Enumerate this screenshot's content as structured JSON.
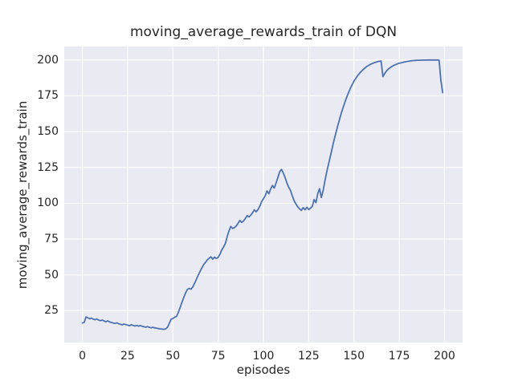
{
  "window": {
    "kind": "matplotlib-figure",
    "background": "#ffffff"
  },
  "chart_data": {
    "type": "line",
    "title": "moving_average_rewards_train of DQN",
    "xlabel": "episodes",
    "ylabel": "moving_average_rewards_train",
    "xlim": [
      -10,
      210
    ],
    "ylim": [
      2.8,
      209.4
    ],
    "xticks": [
      0,
      25,
      50,
      75,
      100,
      125,
      150,
      175,
      200
    ],
    "yticks": [
      25,
      50,
      75,
      100,
      125,
      150,
      175,
      200
    ],
    "grid": true,
    "legend_position": "none",
    "style": {
      "figure_bg": "#ffffff",
      "axes_bg": "#EAEAF2",
      "grid_color": "#FFFFFF",
      "line_color": "#4C72B0",
      "text_color": "#262626",
      "line_width": 1.8
    },
    "series": [
      {
        "name": "moving_average_rewards_train",
        "points": [
          [
            0,
            16.4
          ],
          [
            1,
            16.8
          ],
          [
            2,
            20.6
          ],
          [
            3,
            20.1
          ],
          [
            4,
            19.4
          ],
          [
            5,
            19.8
          ],
          [
            6,
            19.1
          ],
          [
            7,
            18.7
          ],
          [
            8,
            19.2
          ],
          [
            9,
            18.4
          ],
          [
            10,
            18.1
          ],
          [
            11,
            18.5
          ],
          [
            12,
            17.8
          ],
          [
            13,
            17.3
          ],
          [
            14,
            17.9
          ],
          [
            15,
            17.2
          ],
          [
            16,
            16.8
          ],
          [
            17,
            16.4
          ],
          [
            18,
            16.1
          ],
          [
            19,
            16.5
          ],
          [
            20,
            15.9
          ],
          [
            21,
            15.5
          ],
          [
            22,
            15.1
          ],
          [
            23,
            15.7
          ],
          [
            24,
            15.3
          ],
          [
            25,
            14.9
          ],
          [
            26,
            14.5
          ],
          [
            27,
            15.2
          ],
          [
            28,
            14.8
          ],
          [
            29,
            14.3
          ],
          [
            30,
            14.7
          ],
          [
            31,
            14.2
          ],
          [
            32,
            14.6
          ],
          [
            33,
            14.1
          ],
          [
            34,
            13.8
          ],
          [
            35,
            13.5
          ],
          [
            36,
            13.9
          ],
          [
            37,
            13.4
          ],
          [
            38,
            13.1
          ],
          [
            39,
            13.4
          ],
          [
            40,
            13.0
          ],
          [
            41,
            12.8
          ],
          [
            42,
            12.5
          ],
          [
            43,
            12.3
          ],
          [
            44,
            12.2
          ],
          [
            45,
            12.0
          ],
          [
            46,
            12.3
          ],
          [
            47,
            13.4
          ],
          [
            48,
            16.2
          ],
          [
            49,
            19.0
          ],
          [
            50,
            19.6
          ],
          [
            51,
            20.4
          ],
          [
            52,
            21.0
          ],
          [
            53,
            23.8
          ],
          [
            54,
            27.2
          ],
          [
            55,
            30.8
          ],
          [
            56,
            34.2
          ],
          [
            57,
            37.4
          ],
          [
            58,
            39.8
          ],
          [
            59,
            40.6
          ],
          [
            60,
            40.0
          ],
          [
            61,
            41.6
          ],
          [
            62,
            44.2
          ],
          [
            63,
            47.0
          ],
          [
            64,
            49.8
          ],
          [
            65,
            52.4
          ],
          [
            66,
            54.8
          ],
          [
            67,
            57.2
          ],
          [
            68,
            58.8
          ],
          [
            69,
            60.4
          ],
          [
            70,
            61.6
          ],
          [
            71,
            62.6
          ],
          [
            72,
            61.0
          ],
          [
            73,
            62.4
          ],
          [
            74,
            61.4
          ],
          [
            75,
            62.2
          ],
          [
            76,
            64.4
          ],
          [
            77,
            67.4
          ],
          [
            78,
            69.4
          ],
          [
            79,
            72.0
          ],
          [
            80,
            76.8
          ],
          [
            81,
            80.8
          ],
          [
            82,
            83.8
          ],
          [
            83,
            82.4
          ],
          [
            84,
            83.0
          ],
          [
            85,
            84.2
          ],
          [
            86,
            86.0
          ],
          [
            87,
            88.0
          ],
          [
            88,
            86.6
          ],
          [
            89,
            87.6
          ],
          [
            90,
            89.4
          ],
          [
            91,
            91.4
          ],
          [
            92,
            90.4
          ],
          [
            93,
            91.6
          ],
          [
            94,
            93.4
          ],
          [
            95,
            95.4
          ],
          [
            96,
            94.0
          ],
          [
            97,
            95.6
          ],
          [
            98,
            98.0
          ],
          [
            99,
            101.0
          ],
          [
            100,
            103.2
          ],
          [
            101,
            105.4
          ],
          [
            102,
            108.6
          ],
          [
            103,
            106.6
          ],
          [
            104,
            110.0
          ],
          [
            105,
            112.4
          ],
          [
            106,
            110.6
          ],
          [
            107,
            114.2
          ],
          [
            108,
            118.0
          ],
          [
            109,
            122.0
          ],
          [
            110,
            123.6
          ],
          [
            111,
            121.0
          ],
          [
            112,
            117.8
          ],
          [
            113,
            114.0
          ],
          [
            114,
            111.0
          ],
          [
            115,
            108.8
          ],
          [
            116,
            105.0
          ],
          [
            117,
            101.6
          ],
          [
            118,
            99.4
          ],
          [
            119,
            97.4
          ],
          [
            120,
            96.0
          ],
          [
            121,
            95.0
          ],
          [
            122,
            97.0
          ],
          [
            123,
            95.4
          ],
          [
            124,
            97.2
          ],
          [
            125,
            95.6
          ],
          [
            126,
            96.6
          ],
          [
            127,
            97.8
          ],
          [
            128,
            102.6
          ],
          [
            129,
            100.4
          ],
          [
            130,
            106.6
          ],
          [
            131,
            110.2
          ],
          [
            132,
            104.0
          ],
          [
            133,
            109.0
          ],
          [
            134,
            116.0
          ],
          [
            135,
            122.0
          ],
          [
            136,
            127.6
          ],
          [
            137,
            133.0
          ],
          [
            138,
            138.6
          ],
          [
            139,
            144.0
          ],
          [
            140,
            149.0
          ],
          [
            141,
            153.8
          ],
          [
            142,
            158.4
          ],
          [
            143,
            162.8
          ],
          [
            144,
            166.8
          ],
          [
            145,
            170.6
          ],
          [
            146,
            174.0
          ],
          [
            147,
            177.2
          ],
          [
            148,
            180.2
          ],
          [
            149,
            182.8
          ],
          [
            150,
            185.2
          ],
          [
            151,
            187.2
          ],
          [
            152,
            189.0
          ],
          [
            153,
            190.6
          ],
          [
            154,
            192.0
          ],
          [
            155,
            193.2
          ],
          [
            156,
            194.4
          ],
          [
            157,
            195.4
          ],
          [
            158,
            196.2
          ],
          [
            159,
            196.9
          ],
          [
            160,
            197.5
          ],
          [
            161,
            198.0
          ],
          [
            162,
            198.4
          ],
          [
            163,
            198.8
          ],
          [
            164,
            199.1
          ],
          [
            165,
            199.3
          ],
          [
            166,
            188.4
          ],
          [
            167,
            190.6
          ],
          [
            168,
            192.4
          ],
          [
            169,
            193.7
          ],
          [
            170,
            194.7
          ],
          [
            171,
            195.5
          ],
          [
            172,
            196.2
          ],
          [
            173,
            196.8
          ],
          [
            174,
            197.3
          ],
          [
            175,
            197.7
          ],
          [
            176,
            198.0
          ],
          [
            177,
            198.3
          ],
          [
            178,
            198.6
          ],
          [
            179,
            198.9
          ],
          [
            180,
            199.1
          ],
          [
            181,
            199.3
          ],
          [
            182,
            199.5
          ],
          [
            183,
            199.6
          ],
          [
            184,
            199.7
          ],
          [
            185,
            199.8
          ],
          [
            186,
            199.85
          ],
          [
            187,
            199.9
          ],
          [
            188,
            199.9
          ],
          [
            189,
            199.95
          ],
          [
            190,
            199.95
          ],
          [
            191,
            200.0
          ],
          [
            192,
            200.0
          ],
          [
            193,
            200.0
          ],
          [
            194,
            200.0
          ],
          [
            195,
            200.0
          ],
          [
            196,
            200.0
          ],
          [
            197,
            199.9
          ],
          [
            198,
            186.0
          ],
          [
            199,
            177.2
          ]
        ]
      }
    ]
  }
}
